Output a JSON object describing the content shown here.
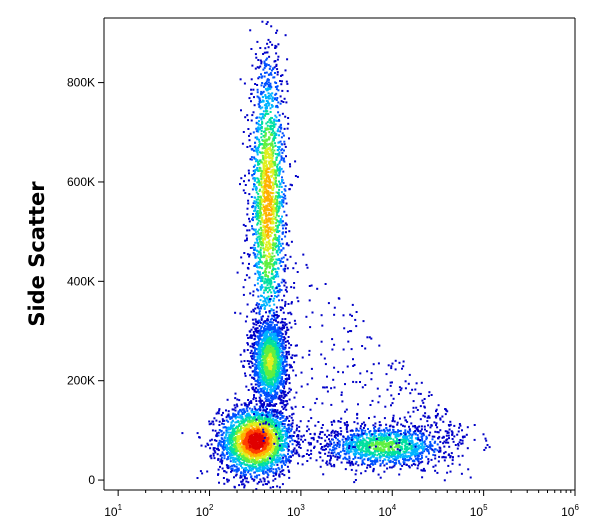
{
  "chart_data": {
    "type": "scatter",
    "title": "",
    "xlabel": "",
    "ylabel": "Side Scatter",
    "xscale": "log",
    "xlim": [
      7,
      1000000
    ],
    "ylim": [
      -20000,
      930000
    ],
    "xticks": [
      {
        "base": "10",
        "exp": "1",
        "value": 10
      },
      {
        "base": "10",
        "exp": "2",
        "value": 100
      },
      {
        "base": "10",
        "exp": "3",
        "value": 1000
      },
      {
        "base": "10",
        "exp": "4",
        "value": 10000
      },
      {
        "base": "10",
        "exp": "5",
        "value": 100000
      },
      {
        "base": "10",
        "exp": "6",
        "value": 1000000
      }
    ],
    "yticks": [
      {
        "label": "0",
        "value": 0
      },
      {
        "label": "200K",
        "value": 200000
      },
      {
        "label": "400K",
        "value": 400000
      },
      {
        "label": "600K",
        "value": 600000
      },
      {
        "label": "800K",
        "value": 800000
      }
    ],
    "grid": false,
    "colormap": [
      "#0000c8",
      "#0050ff",
      "#00b4ff",
      "#00e0a0",
      "#60f040",
      "#e0f020",
      "#ffb000",
      "#ff4000",
      "#e00000"
    ],
    "populations": [
      {
        "log10x_mean": 2.5,
        "log10x_sd": 0.2,
        "y_mean": 80000,
        "y_sd": 35000,
        "density": 1.0
      },
      {
        "log10x_mean": 2.63,
        "log10x_sd": 0.1,
        "y_mean": 560000,
        "y_sd": 150000,
        "density": 0.75
      },
      {
        "log10x_mean": 2.65,
        "log10x_sd": 0.1,
        "y_mean": 240000,
        "y_sd": 45000,
        "density": 0.6
      },
      {
        "log10x_mean": 3.9,
        "log10x_sd": 0.35,
        "y_mean": 70000,
        "y_sd": 22000,
        "density": 0.5
      }
    ]
  }
}
